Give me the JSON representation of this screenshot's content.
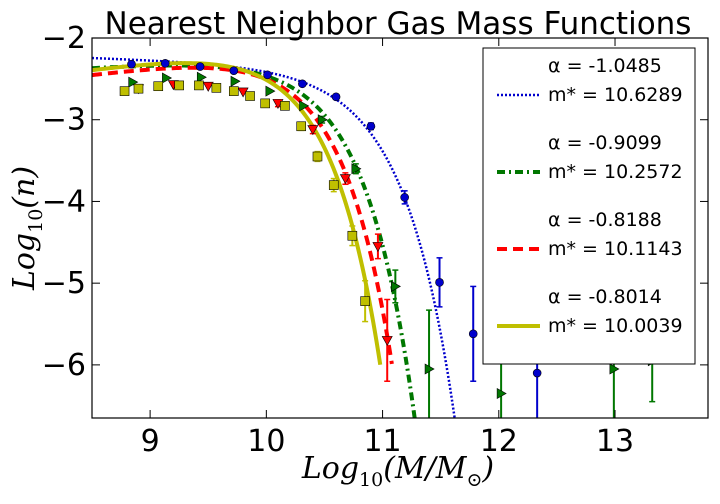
{
  "chart_data": {
    "type": "line",
    "title": "Nearest Neighbor Gas Mass Functions",
    "xlabel": "Log10(M/M⊙)",
    "ylabel": "Log10(n)",
    "xlim": [
      8.5,
      13.8
    ],
    "ylim": [
      -6.65,
      -2.0
    ],
    "xticks": [
      9,
      10,
      11,
      12,
      13
    ],
    "yticks": [
      -2,
      -3,
      -4,
      -5,
      -6
    ],
    "grid": false,
    "legend_position": "right",
    "series": [
      {
        "name": "α = -1.0485\nm* = 10.6289",
        "alpha_label": "α = -1.0485",
        "mstar_label": "m* = 10.6289",
        "color": "#0000cc",
        "line_style": "dotted",
        "marker": "circle",
        "alpha": -1.0485,
        "mstar": 10.6289,
        "phi": 0.00196,
        "curve_x": [
          8.5,
          11.7
        ],
        "points": [
          {
            "x": 8.84,
            "y": -2.32,
            "err": 0.03
          },
          {
            "x": 9.13,
            "y": -2.31,
            "err": 0.03
          },
          {
            "x": 9.43,
            "y": -2.35,
            "err": 0.03
          },
          {
            "x": 9.72,
            "y": -2.4,
            "err": 0.03
          },
          {
            "x": 10.01,
            "y": -2.45,
            "err": 0.03
          },
          {
            "x": 10.31,
            "y": -2.56,
            "err": 0.03
          },
          {
            "x": 10.6,
            "y": -2.72,
            "err": 0.03
          },
          {
            "x": 10.9,
            "y": -3.08,
            "err": 0.04
          },
          {
            "x": 11.19,
            "y": -3.95,
            "err": 0.08
          },
          {
            "x": 11.49,
            "y": -4.99,
            "err": 0.3
          },
          {
            "x": 11.78,
            "y": -5.62,
            "err": 0.58
          },
          {
            "x": 12.33,
            "y": -6.1,
            "err": 0.85
          }
        ]
      },
      {
        "name": "α = -0.9099\nm* = 10.2572",
        "alpha_label": "α = -0.9099",
        "mstar_label": "m* = 10.2572",
        "color": "#007700",
        "line_style": "dashdot",
        "marker": "triangle-right",
        "alpha": -0.9099,
        "mstar": 10.2572,
        "phi": 0.00272,
        "curve_x": [
          8.5,
          11.32
        ],
        "points": [
          {
            "x": 8.85,
            "y": -2.54,
            "err": 0.03
          },
          {
            "x": 9.14,
            "y": -2.49,
            "err": 0.03
          },
          {
            "x": 9.44,
            "y": -2.48,
            "err": 0.03
          },
          {
            "x": 9.73,
            "y": -2.53,
            "err": 0.03
          },
          {
            "x": 10.03,
            "y": -2.65,
            "err": 0.03
          },
          {
            "x": 10.32,
            "y": -2.83,
            "err": 0.03
          },
          {
            "x": 10.48,
            "y": -3.0,
            "err": 0.04
          },
          {
            "x": 10.77,
            "y": -3.6,
            "err": 0.06
          },
          {
            "x": 11.11,
            "y": -5.04,
            "err": 0.2
          },
          {
            "x": 11.4,
            "y": -6.05,
            "err": 0.72
          },
          {
            "x": 12.02,
            "y": -6.35,
            "err": 0.65
          },
          {
            "x": 12.99,
            "y": -6.05,
            "err": 0.7
          },
          {
            "x": 13.32,
            "y": -5.95,
            "err": 0.5
          }
        ]
      },
      {
        "name": "α = -0.8188\nm* = 10.1143",
        "alpha_label": "α = -0.8188",
        "mstar_label": "m* = 10.1143",
        "color": "#ff0000",
        "line_style": "dashed",
        "marker": "triangle-down",
        "alpha": -0.8188,
        "mstar": 10.1143,
        "phi": 0.00307,
        "curve_x": [
          8.5,
          11.08
        ],
        "points": [
          {
            "x": 8.9,
            "y": -2.62,
            "err": 0.03
          },
          {
            "x": 9.2,
            "y": -2.57,
            "err": 0.03
          },
          {
            "x": 9.5,
            "y": -2.59,
            "err": 0.03
          },
          {
            "x": 9.8,
            "y": -2.66,
            "err": 0.03
          },
          {
            "x": 10.1,
            "y": -2.8,
            "err": 0.04
          },
          {
            "x": 10.4,
            "y": -3.12,
            "err": 0.05
          },
          {
            "x": 10.68,
            "y": -3.72,
            "err": 0.07
          },
          {
            "x": 10.96,
            "y": -4.55,
            "err": 0.15
          },
          {
            "x": 11.04,
            "y": -5.7,
            "err": 0.5
          }
        ]
      },
      {
        "name": "α = -0.8014\nm* = 10.0039",
        "alpha_label": "α = -0.8014",
        "mstar_label": "m* = 10.0039",
        "color": "#bfbf00",
        "line_style": "solid",
        "marker": "square",
        "alpha": -0.8014,
        "mstar": 10.0039,
        "phi": 0.0036,
        "curve_x": [
          8.5,
          10.98
        ],
        "points": [
          {
            "x": 8.78,
            "y": -2.65,
            "err": 0.03
          },
          {
            "x": 8.9,
            "y": -2.62,
            "err": 0.03
          },
          {
            "x": 9.07,
            "y": -2.59,
            "err": 0.03
          },
          {
            "x": 9.25,
            "y": -2.58,
            "err": 0.03
          },
          {
            "x": 9.42,
            "y": -2.58,
            "err": 0.03
          },
          {
            "x": 9.57,
            "y": -2.61,
            "err": 0.03
          },
          {
            "x": 9.72,
            "y": -2.65,
            "err": 0.03
          },
          {
            "x": 9.86,
            "y": -2.71,
            "err": 0.03
          },
          {
            "x": 9.99,
            "y": -2.8,
            "err": 0.03
          },
          {
            "x": 10.16,
            "y": -2.83,
            "err": 0.04
          },
          {
            "x": 10.3,
            "y": -3.08,
            "err": 0.05
          },
          {
            "x": 10.44,
            "y": -3.45,
            "err": 0.06
          },
          {
            "x": 10.58,
            "y": -3.8,
            "err": 0.08
          },
          {
            "x": 10.74,
            "y": -4.42,
            "err": 0.12
          },
          {
            "x": 10.85,
            "y": -5.22,
            "err": 0.25
          }
        ]
      }
    ]
  }
}
